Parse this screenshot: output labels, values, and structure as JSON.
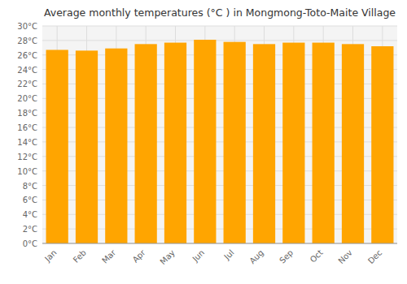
{
  "chart_data": {
    "type": "bar",
    "title": "Average monthly temperatures (°C ) in Mongmong-Toto-Maite Village",
    "categories": [
      "Jan",
      "Feb",
      "Mar",
      "Apr",
      "May",
      "Jun",
      "Jul",
      "Aug",
      "Sep",
      "Oct",
      "Nov",
      "Dec"
    ],
    "values": [
      26.7,
      26.6,
      26.9,
      27.5,
      27.7,
      28.1,
      27.8,
      27.5,
      27.7,
      27.7,
      27.5,
      27.2
    ],
    "color": "#FFA500",
    "ylim": [
      0,
      30
    ],
    "yticks": [
      {
        "value": 0,
        "label": "0°C"
      },
      {
        "value": 2,
        "label": "2°C"
      },
      {
        "value": 4,
        "label": "4°C"
      },
      {
        "value": 6,
        "label": "6°C"
      },
      {
        "value": 8,
        "label": "8°C"
      },
      {
        "value": 10,
        "label": "10°C"
      },
      {
        "value": 12,
        "label": "12°C"
      },
      {
        "value": 14,
        "label": "14°C"
      },
      {
        "value": 16,
        "label": "16°C"
      },
      {
        "value": 18,
        "label": "18°C"
      },
      {
        "value": 20,
        "label": "20°C"
      },
      {
        "value": 22,
        "label": "22°C"
      },
      {
        "value": 24,
        "label": "24°C"
      },
      {
        "value": 26,
        "label": "26°C"
      },
      {
        "value": 28,
        "label": "28°C"
      },
      {
        "value": 30,
        "label": "30°C"
      }
    ],
    "grid": true
  }
}
